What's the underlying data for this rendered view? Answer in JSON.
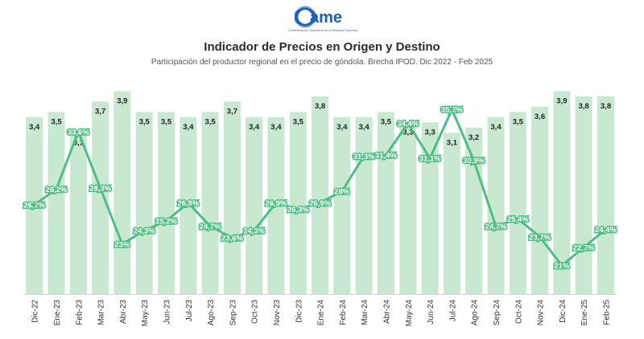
{
  "logo": {
    "text": "ame",
    "subtext": "Confederación Argentina de la Mediana Empresa",
    "color": "#1f5fb8"
  },
  "chart_data": {
    "type": "bar+line",
    "title": "Indicador de Precios en Origen y Destino",
    "subtitle": "Participación del productor regional en el precio de góndola. Brecha IPOD. Dic 2022 - Feb 2025",
    "categories": [
      "Dic-22",
      "Ene-23",
      "Feb-23",
      "Mar-23",
      "Abr-23",
      "May-23",
      "Jun-23",
      "Jul-23",
      "Ago-23",
      "Sep-23",
      "Oct-23",
      "Nov-23",
      "Dic-23",
      "Ene-24",
      "Feb-24",
      "Mar-24",
      "Abr-24",
      "May-24",
      "Jun-24",
      "Jul-24",
      "Ago-24",
      "Sep-24",
      "Oct-24",
      "Nov-24",
      "Dic-24",
      "Ene-25",
      "Feb-25"
    ],
    "series": [
      {
        "kind": "bar",
        "values": [
          3.4,
          3.5,
          3.1,
          3.7,
          3.9,
          3.5,
          3.5,
          3.4,
          3.5,
          3.7,
          3.4,
          3.4,
          3.5,
          3.8,
          3.4,
          3.4,
          3.5,
          3.3,
          3.3,
          3.1,
          3.2,
          3.4,
          3.5,
          3.6,
          3.9,
          3.8,
          3.8
        ],
        "labels": [
          "3,4",
          "3,5",
          "3,1",
          "3,7",
          "3,9",
          "3,5",
          "3,5",
          "3,4",
          "3,5",
          "3,7",
          "3,4",
          "3,4",
          "3,5",
          "3,8",
          "3,4",
          "3,4",
          "3,5",
          "3,3",
          "3,3",
          "3,1",
          "3,2",
          "3,4",
          "3,5",
          "3,6",
          "3,9",
          "3,8",
          "3,8"
        ],
        "color": "#c9e8d2"
      },
      {
        "kind": "line",
        "values": [
          26.7,
          28.2,
          33.6,
          28.3,
          23.0,
          24.3,
          25.2,
          26.9,
          24.7,
          23.6,
          24.3,
          26.9,
          26.3,
          26.9,
          28.0,
          31.3,
          31.4,
          34.4,
          31.1,
          35.7,
          30.9,
          24.7,
          25.4,
          23.7,
          21.0,
          22.7,
          24.4
        ],
        "labels": [
          "26,7%",
          "28,2%",
          "33,6%",
          "28,3%",
          "23%",
          "24,3%",
          "25,2%",
          "26,9%",
          "24,7%",
          "23,6%",
          "24,3%",
          "26,9%",
          "26,3%",
          "26,9%",
          "28%",
          "31,3%",
          "31,4%",
          "34,4%",
          "31,1%",
          "35,7%",
          "30,9%",
          "24,7%",
          "25,4%",
          "23,7%",
          "21%",
          "22,7%",
          "24,4%"
        ],
        "color": "#4ebf84"
      }
    ],
    "bar_axis": {
      "min": 0,
      "max": 4.0
    },
    "line_axis": {
      "min": 14,
      "max": 37
    },
    "grid": false,
    "legend": "none"
  }
}
